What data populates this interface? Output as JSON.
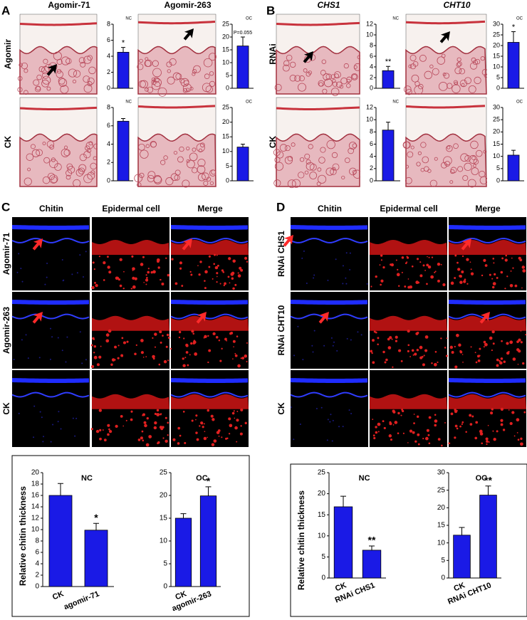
{
  "panel_A": {
    "letter": "A",
    "column_headers": [
      "Agomir-71",
      "Agomir-263"
    ],
    "row_labels": [
      "Agomir",
      "CK"
    ],
    "charts": [
      {
        "type": "bar",
        "label": "NC",
        "values": [
          4.5
        ],
        "errors": [
          0.6
        ],
        "annotations": [
          "*"
        ],
        "ylim": [
          0,
          8
        ],
        "yticks": [
          0,
          2,
          4,
          6,
          8
        ],
        "color": "#1a1ae6"
      },
      {
        "type": "bar",
        "label": "OC",
        "values": [
          16.5
        ],
        "errors": [
          3.5
        ],
        "annotations": [
          "P=0.055"
        ],
        "ylim": [
          0,
          25
        ],
        "yticks": [
          0,
          5,
          10,
          15,
          20,
          25
        ],
        "color": "#1a1ae6"
      },
      {
        "type": "bar",
        "label": "NC",
        "values": [
          6.5
        ],
        "errors": [
          0.3
        ],
        "ylim": [
          0,
          8
        ],
        "yticks": [
          0,
          2,
          4,
          6,
          8
        ],
        "color": "#1a1ae6"
      },
      {
        "type": "bar",
        "label": "OC",
        "values": [
          11.5
        ],
        "errors": [
          1
        ],
        "ylim": [
          0,
          25
        ],
        "yticks": [
          0,
          5,
          10,
          15,
          20,
          25
        ],
        "color": "#1a1ae6"
      }
    ]
  },
  "panel_B": {
    "letter": "B",
    "column_headers": [
      "CHS1",
      "CHT10"
    ],
    "row_labels": [
      "RNAi",
      "CK"
    ],
    "charts": [
      {
        "type": "bar",
        "label": "NC",
        "values": [
          3.3
        ],
        "errors": [
          0.8
        ],
        "annotations": [
          "**"
        ],
        "ylim": [
          0,
          12
        ],
        "yticks": [
          0,
          2,
          4,
          6,
          8,
          10,
          12
        ],
        "color": "#1a1ae6"
      },
      {
        "type": "bar",
        "label": "OC",
        "values": [
          21.5
        ],
        "errors": [
          5
        ],
        "annotations": [
          "*"
        ],
        "ylim": [
          0,
          30
        ],
        "yticks": [
          0,
          5,
          10,
          15,
          20,
          25,
          30
        ],
        "color": "#1a1ae6"
      },
      {
        "type": "bar",
        "label": "NC",
        "values": [
          8.3
        ],
        "errors": [
          1.3
        ],
        "ylim": [
          0,
          12
        ],
        "yticks": [
          0,
          2,
          4,
          6,
          8,
          10,
          12
        ],
        "color": "#1a1ae6"
      },
      {
        "type": "bar",
        "label": "OC",
        "values": [
          10.5
        ],
        "errors": [
          2
        ],
        "ylim": [
          0,
          30
        ],
        "yticks": [
          0,
          5,
          10,
          15,
          20,
          25,
          30
        ],
        "color": "#1a1ae6"
      }
    ]
  },
  "panel_C": {
    "letter": "C",
    "column_headers": [
      "Chitin",
      "Epidermal cell",
      "Merge"
    ],
    "row_labels": [
      "Agomir-71",
      "Agomir-263",
      "CK"
    ],
    "y_label": "Relative chitin thickness",
    "charts": [
      {
        "type": "bar",
        "label": "NC",
        "categories": [
          "CK",
          "agomir-71"
        ],
        "values": [
          16,
          9.9
        ],
        "errors": [
          2.1,
          1.2
        ],
        "annotations": [
          null,
          "*"
        ],
        "ylim": [
          0,
          20
        ],
        "yticks": [
          0,
          2,
          4,
          6,
          8,
          10,
          12,
          14,
          16,
          18,
          20
        ],
        "color": "#1a1ae6"
      },
      {
        "type": "bar",
        "label": "OC",
        "categories": [
          "CK",
          "agomir-263"
        ],
        "values": [
          15,
          19.9
        ],
        "errors": [
          1,
          2
        ],
        "annotations": [
          null,
          "*"
        ],
        "ylim": [
          0,
          25
        ],
        "yticks": [
          0,
          5,
          10,
          15,
          20,
          25
        ],
        "color": "#1a1ae6"
      }
    ]
  },
  "panel_D": {
    "letter": "D",
    "column_headers": [
      "Chitin",
      "Epidermal cell",
      "Merge"
    ],
    "row_labels": [
      "RNAi CHS1",
      "RNAi CHT10",
      "CK"
    ],
    "y_label": "Relative chitin thickness",
    "charts": [
      {
        "type": "bar",
        "label": "NC",
        "categories": [
          "CK",
          "RNAi CHS1"
        ],
        "values": [
          16.9,
          6.6
        ],
        "errors": [
          2.5,
          1
        ],
        "annotations": [
          null,
          "**"
        ],
        "ylim": [
          0,
          25
        ],
        "yticks": [
          0,
          5,
          10,
          15,
          20,
          25
        ],
        "color": "#1a1ae6"
      },
      {
        "type": "bar",
        "label": "OC",
        "categories": [
          "CK",
          "RNAi CHT10"
        ],
        "values": [
          12.2,
          23.6
        ],
        "errors": [
          2.2,
          2.6
        ],
        "annotations": [
          null,
          "**"
        ],
        "ylim": [
          0,
          30
        ],
        "yticks": [
          0,
          5,
          10,
          15,
          20,
          25,
          30
        ],
        "color": "#1a1ae6"
      }
    ]
  }
}
